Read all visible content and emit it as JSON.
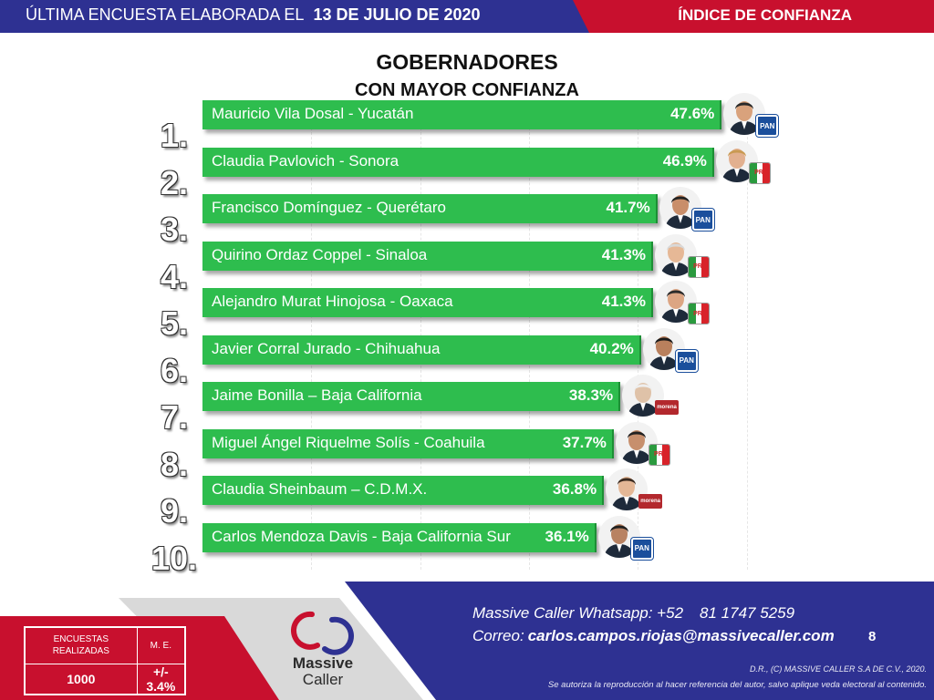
{
  "header": {
    "left_text": "ÚLTIMA ENCUESTA ELABORADA EL",
    "date": "13 DE JULIO DE 2020",
    "right_text": "ÍNDICE DE CONFIANZA",
    "colors": {
      "navy": "#2e3192",
      "red": "#c8102e"
    }
  },
  "chart_data": {
    "type": "bar",
    "orientation": "horizontal",
    "title": "GOBERNADORES",
    "subtitle": "CON MAYOR CONFIANZA",
    "unit": "%",
    "bar_color": "#2ebd4e",
    "xlim": [
      0,
      50
    ],
    "ranks": [
      "1.",
      "2.",
      "3.",
      "4.",
      "5.",
      "6.",
      "7.",
      "8.",
      "9.",
      "10."
    ],
    "categories": [
      "Mauricio Vila Dosal - Yucatán",
      "Claudia Pavlovich - Sonora",
      "Francisco Domínguez - Querétaro",
      "Quirino Ordaz Coppel - Sinaloa",
      "Alejandro Murat Hinojosa - Oaxaca",
      "Javier Corral Jurado - Chihuahua",
      "Jaime Bonilla – Baja California",
      "Miguel Ángel Riquelme Solís - Coahuila",
      "Claudia Sheinbaum – C.D.M.X.",
      "Carlos Mendoza Davis - Baja California Sur"
    ],
    "values": [
      47.6,
      46.9,
      41.7,
      41.3,
      41.3,
      40.2,
      38.3,
      37.7,
      36.8,
      36.1
    ],
    "value_labels": [
      "47.6%",
      "46.9%",
      "41.7%",
      "41.3%",
      "41.3%",
      "40.2%",
      "38.3%",
      "37.7%",
      "36.8%",
      "36.1%"
    ],
    "parties": [
      "PAN",
      "PRI",
      "PAN",
      "PRI",
      "PRI",
      "PAN",
      "morena",
      "PRI",
      "morena",
      "PAN"
    ]
  },
  "footer": {
    "stats": {
      "col1_header": "ENCUESTAS REALIZADAS",
      "col2_header": "M. E.",
      "col1_value": "1000",
      "col2_value": "+/- 3.4%"
    },
    "logo_line1": "Massive",
    "logo_line2": "Caller",
    "whatsapp_label": "Massive Caller Whatsapp: +52",
    "whatsapp_number": "81 1747 5259",
    "email_label": "Correo:",
    "email": "carlos.campos.riojas@massivecaller.com",
    "page_number": "8",
    "copyright": "D.R., (C) MASSIVE CALLER S.A DE C.V., 2020.",
    "authorization": "Se autoriza la reproducción al hacer referencia del autor, salvo aplique veda electoral al contenido."
  }
}
